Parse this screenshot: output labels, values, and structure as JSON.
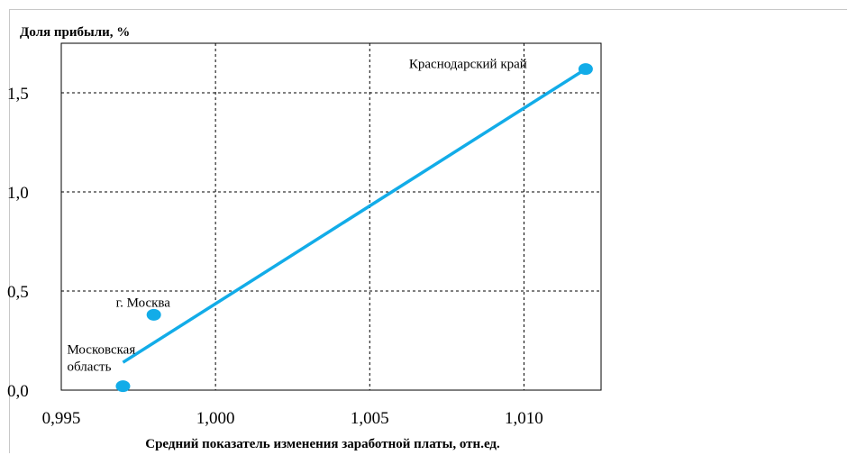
{
  "chart_data": {
    "type": "scatter",
    "ylabel": "Доля прибыли, %",
    "xlabel": "Средний показатель изменения заработной платы, отн.ед.",
    "xlim": [
      0.995,
      1.0125
    ],
    "ylim": [
      0.0,
      1.75
    ],
    "xticks": [
      0.995,
      1.0,
      1.005,
      1.01
    ],
    "xtick_labels": [
      "0,995",
      "1,000",
      "1,005",
      "1,010"
    ],
    "yticks": [
      0.0,
      0.5,
      1.0,
      1.5
    ],
    "ytick_labels": [
      "0,0",
      "0,5",
      "1,0",
      "1,5"
    ],
    "grid": true,
    "series": [
      {
        "points": [
          {
            "x": 0.997,
            "y": 0.02,
            "label": "Московская область"
          },
          {
            "x": 0.998,
            "y": 0.38,
            "label": "г. Москва"
          },
          {
            "x": 1.012,
            "y": 1.62,
            "label": "Краснодарский край"
          }
        ],
        "color": "#12ace8"
      }
    ],
    "trendline": {
      "x": [
        0.997,
        1.012
      ],
      "y": [
        0.14,
        1.62
      ],
      "color": "#12ace8"
    }
  }
}
